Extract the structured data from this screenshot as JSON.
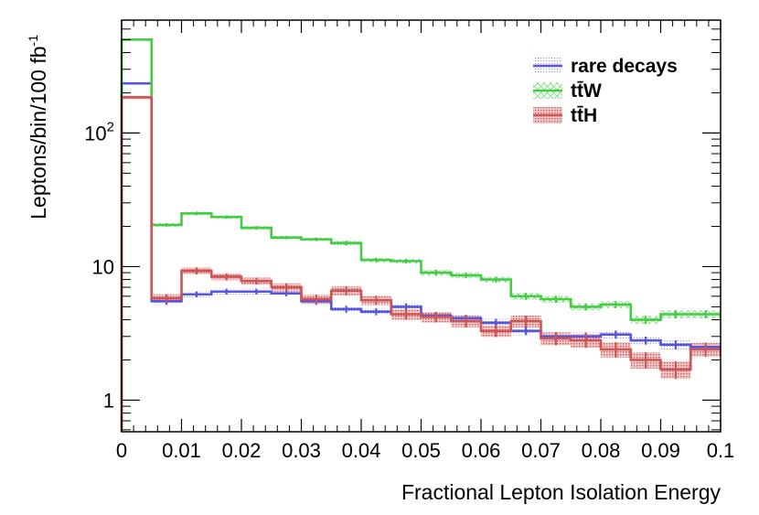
{
  "chart_data": {
    "type": "histogram",
    "title": "",
    "xlabel": "Fractional Lepton Isolation Energy",
    "ylabel_main": "Leptons/bin/100 fb",
    "ylabel_superscript": "-1",
    "xlim": [
      0,
      0.1
    ],
    "ylim": [
      0.58,
      700
    ],
    "yscale": "log",
    "grid": false,
    "legend_position": "top-right",
    "x_ticks": [
      {
        "value": 0,
        "label": "0"
      },
      {
        "value": 0.01,
        "label": "0.01"
      },
      {
        "value": 0.02,
        "label": "0.02"
      },
      {
        "value": 0.03,
        "label": "0.03"
      },
      {
        "value": 0.04,
        "label": "0.04"
      },
      {
        "value": 0.05,
        "label": "0.05"
      },
      {
        "value": 0.06,
        "label": "0.06"
      },
      {
        "value": 0.07,
        "label": "0.07"
      },
      {
        "value": 0.08,
        "label": "0.08"
      },
      {
        "value": 0.09,
        "label": "0.09"
      },
      {
        "value": 0.1,
        "label": "0.1"
      }
    ],
    "y_ticks": [
      {
        "value": 1,
        "label": "1",
        "exponent": ""
      },
      {
        "value": 10,
        "label": "10",
        "exponent": ""
      },
      {
        "value": 100,
        "label": "10",
        "exponent": "2"
      }
    ],
    "bin_edges": [
      0,
      0.005,
      0.01,
      0.015,
      0.02,
      0.025,
      0.03,
      0.035,
      0.04,
      0.045,
      0.05,
      0.055,
      0.06,
      0.065,
      0.07,
      0.075,
      0.08,
      0.085,
      0.09,
      0.095,
      0.1
    ],
    "series": [
      {
        "name": "rare decays",
        "color": "#5555dd",
        "band_style": "dots",
        "values": [
          235,
          5.5,
          6.2,
          6.5,
          6.5,
          6.3,
          5.5,
          4.8,
          4.6,
          5.0,
          4.3,
          4.1,
          3.8,
          3.3,
          3.0,
          3.0,
          3.1,
          2.8,
          2.6,
          2.5
        ],
        "errors": [
          0.02,
          0.06,
          0.05,
          0.05,
          0.05,
          0.05,
          0.06,
          0.06,
          0.06,
          0.06,
          0.06,
          0.06,
          0.07,
          0.07,
          0.07,
          0.07,
          0.07,
          0.07,
          0.08,
          0.08
        ]
      },
      {
        "name": "tt̄W",
        "color": "#44cc44",
        "band_style": "cross",
        "values": [
          500,
          20.5,
          25,
          23.5,
          19.5,
          16.5,
          16,
          15,
          11.2,
          11,
          9,
          8.6,
          8.0,
          6.0,
          5.7,
          5.0,
          5.2,
          4.0,
          4.4,
          4.4
        ],
        "errors": [
          0.01,
          0.03,
          0.03,
          0.03,
          0.03,
          0.03,
          0.03,
          0.04,
          0.04,
          0.04,
          0.05,
          0.05,
          0.05,
          0.06,
          0.06,
          0.06,
          0.06,
          0.07,
          0.07,
          0.07
        ]
      },
      {
        "name": "tt̄H",
        "color": "#cc5555",
        "band_style": "hatch",
        "values": [
          185,
          5.8,
          9.3,
          8.4,
          7.8,
          7.0,
          5.7,
          6.6,
          5.6,
          4.4,
          4.2,
          3.9,
          3.3,
          3.9,
          2.9,
          2.8,
          2.4,
          2.0,
          1.7,
          2.4
        ],
        "errors": [
          0.03,
          0.07,
          0.06,
          0.06,
          0.06,
          0.07,
          0.08,
          0.08,
          0.08,
          0.09,
          0.09,
          0.1,
          0.1,
          0.1,
          0.11,
          0.12,
          0.13,
          0.14,
          0.15,
          0.12
        ]
      }
    ]
  }
}
